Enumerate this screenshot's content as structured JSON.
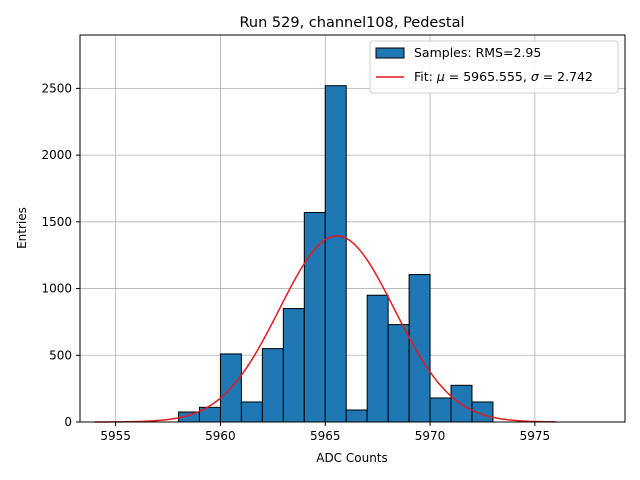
{
  "chart_data": {
    "type": "bar",
    "title": "Run 529, channel108, Pedestal",
    "xlabel": "ADC Counts",
    "ylabel": "Entries",
    "xlim": [
      5953.3,
      5979.3
    ],
    "ylim": [
      0,
      2900
    ],
    "xticks": [
      5955,
      5960,
      5965,
      5970,
      5975
    ],
    "yticks": [
      0,
      500,
      1000,
      1500,
      2000,
      2500
    ],
    "grid": true,
    "legend_position": "top-right",
    "bin_width": 1,
    "bins": [
      {
        "x0": 5958,
        "value": 75
      },
      {
        "x0": 5959,
        "value": 110
      },
      {
        "x0": 5960,
        "value": 510
      },
      {
        "x0": 5961,
        "value": 150
      },
      {
        "x0": 5962,
        "value": 550
      },
      {
        "x0": 5963,
        "value": 850
      },
      {
        "x0": 5964,
        "value": 1570
      },
      {
        "x0": 5965,
        "value": 2520
      },
      {
        "x0": 5966,
        "value": 90
      },
      {
        "x0": 5967,
        "value": 950
      },
      {
        "x0": 5968,
        "value": 730
      },
      {
        "x0": 5969,
        "value": 1105
      },
      {
        "x0": 5970,
        "value": 180
      },
      {
        "x0": 5971,
        "value": 275
      },
      {
        "x0": 5972,
        "value": 150
      }
    ],
    "fit": {
      "mu": 5965.555,
      "sigma": 2.742,
      "amplitude": 1395,
      "x_range": [
        5954,
        5976
      ]
    },
    "series": [
      {
        "name": "Samples: RMS=2.95",
        "type": "histogram",
        "color": "#1f77b4",
        "edge_color": "#000000"
      },
      {
        "name": "Fit: μ = 5965.555, σ = 2.742",
        "type": "line",
        "color": "#e41a1c"
      }
    ],
    "legend": {
      "samples_label": "Samples: RMS=2.95",
      "fit_prefix": "Fit: ",
      "fit_mu_symbol": "μ",
      "fit_mu_text": " = 5965.555, ",
      "fit_sigma_symbol": "σ",
      "fit_sigma_text": " = 2.742"
    }
  }
}
